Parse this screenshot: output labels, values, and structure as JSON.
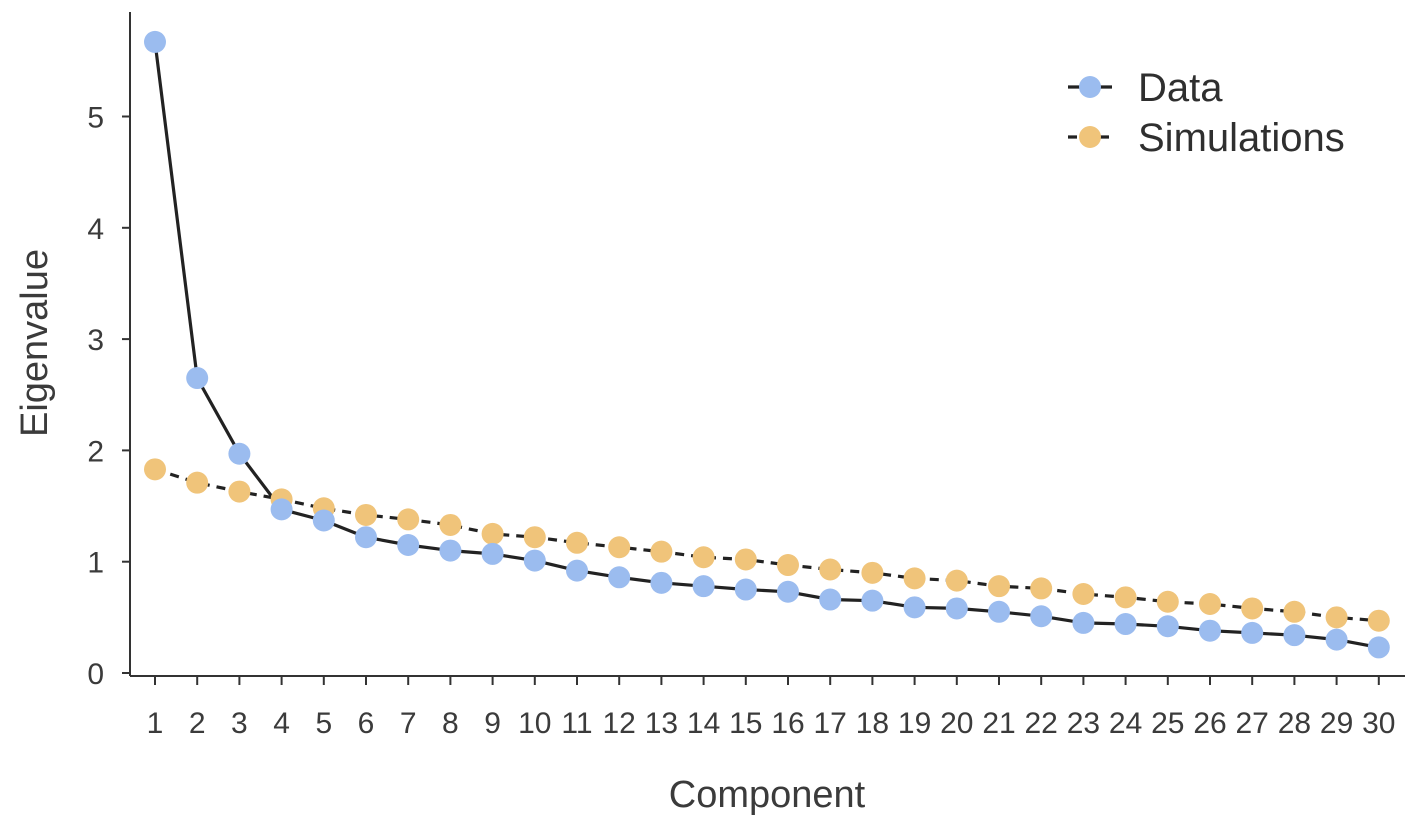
{
  "chart_data": {
    "type": "line",
    "xlabel": "Component",
    "ylabel": "Eigenvalue",
    "x": [
      1,
      2,
      3,
      4,
      5,
      6,
      7,
      8,
      9,
      10,
      11,
      12,
      13,
      14,
      15,
      16,
      17,
      18,
      19,
      20,
      21,
      22,
      23,
      24,
      25,
      26,
      27,
      28,
      29,
      30
    ],
    "x_tick_labels": [
      "1",
      "2",
      "3",
      "4",
      "5",
      "6",
      "7",
      "8",
      "9",
      "10",
      "11",
      "12",
      "13",
      "14",
      "15",
      "16",
      "17",
      "18",
      "19",
      "20",
      "21",
      "22",
      "23",
      "24",
      "25",
      "26",
      "27",
      "28",
      "29",
      "30"
    ],
    "y_ticks": [
      0,
      1,
      2,
      3,
      4,
      5
    ],
    "y_tick_labels": [
      "0",
      "1",
      "2",
      "3",
      "4",
      "5"
    ],
    "ylim": [
      0,
      5.7
    ],
    "xlim": [
      1,
      30
    ],
    "grid": false,
    "legend_position": "top-right",
    "series": [
      {
        "name": "Data",
        "line_style": "solid",
        "color": "#9bbcef",
        "line_color": "#222222",
        "values": [
          5.67,
          2.65,
          1.97,
          1.47,
          1.37,
          1.22,
          1.15,
          1.1,
          1.07,
          1.01,
          0.92,
          0.86,
          0.81,
          0.78,
          0.75,
          0.73,
          0.66,
          0.65,
          0.59,
          0.58,
          0.55,
          0.51,
          0.45,
          0.44,
          0.42,
          0.38,
          0.36,
          0.34,
          0.3,
          0.23
        ]
      },
      {
        "name": "Simulations",
        "line_style": "dashed",
        "color": "#f0c47a",
        "line_color": "#222222",
        "values": [
          1.83,
          1.71,
          1.63,
          1.56,
          1.48,
          1.42,
          1.38,
          1.33,
          1.25,
          1.22,
          1.17,
          1.13,
          1.09,
          1.04,
          1.02,
          0.97,
          0.93,
          0.9,
          0.85,
          0.83,
          0.78,
          0.76,
          0.71,
          0.68,
          0.64,
          0.62,
          0.58,
          0.55,
          0.5,
          0.47
        ]
      }
    ]
  }
}
